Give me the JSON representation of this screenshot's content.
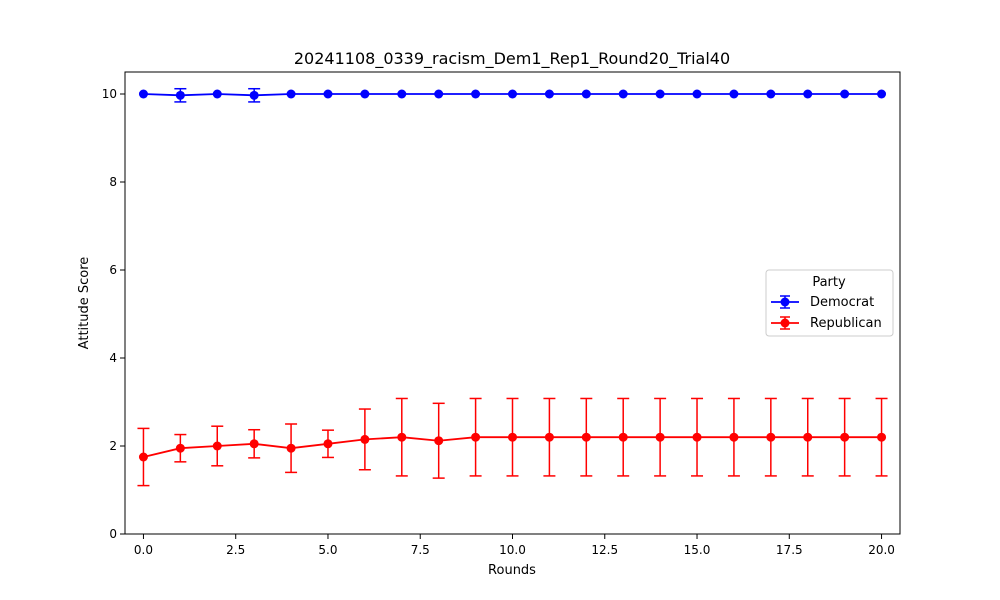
{
  "chart_data": {
    "type": "line",
    "title": "20241108_0339_racism_Dem1_Rep1_Round20_Trial40",
    "xlabel": "Rounds",
    "ylabel": "Attitude Score",
    "xlim": [
      -0.5,
      20.5
    ],
    "ylim": [
      0,
      10.5
    ],
    "xticks": [
      0.0,
      2.5,
      5.0,
      7.5,
      10.0,
      12.5,
      15.0,
      17.5,
      20.0
    ],
    "xtick_labels": [
      "0.0",
      "2.5",
      "5.0",
      "7.5",
      "10.0",
      "12.5",
      "15.0",
      "17.5",
      "20.0"
    ],
    "yticks": [
      0,
      2,
      4,
      6,
      8,
      10
    ],
    "ytick_labels": [
      "0",
      "2",
      "4",
      "6",
      "8",
      "10"
    ],
    "grid": false,
    "legend": {
      "title": "Party",
      "placement": "center-right"
    },
    "x": [
      0,
      1,
      2,
      3,
      4,
      5,
      6,
      7,
      8,
      9,
      10,
      11,
      12,
      13,
      14,
      15,
      16,
      17,
      18,
      19,
      20
    ],
    "series": [
      {
        "name": "Democrat",
        "color": "#0000ff",
        "values": [
          10,
          9.97,
          10,
          9.97,
          10,
          10,
          10,
          10,
          10,
          10,
          10,
          10,
          10,
          10,
          10,
          10,
          10,
          10,
          10,
          10,
          10
        ],
        "errors": [
          0,
          0.15,
          0,
          0.15,
          0,
          0,
          0,
          0,
          0,
          0,
          0,
          0,
          0,
          0,
          0,
          0,
          0,
          0,
          0,
          0,
          0
        ]
      },
      {
        "name": "Republican",
        "color": "#ff0000",
        "values": [
          1.75,
          1.95,
          2.0,
          2.05,
          1.95,
          2.05,
          2.15,
          2.2,
          2.12,
          2.2,
          2.2,
          2.2,
          2.2,
          2.2,
          2.2,
          2.2,
          2.2,
          2.2,
          2.2,
          2.2,
          2.2
        ],
        "errors": [
          0.65,
          0.31,
          0.45,
          0.32,
          0.55,
          0.31,
          0.69,
          0.88,
          0.85,
          0.88,
          0.88,
          0.88,
          0.88,
          0.88,
          0.88,
          0.88,
          0.88,
          0.88,
          0.88,
          0.88,
          0.88
        ]
      }
    ]
  }
}
